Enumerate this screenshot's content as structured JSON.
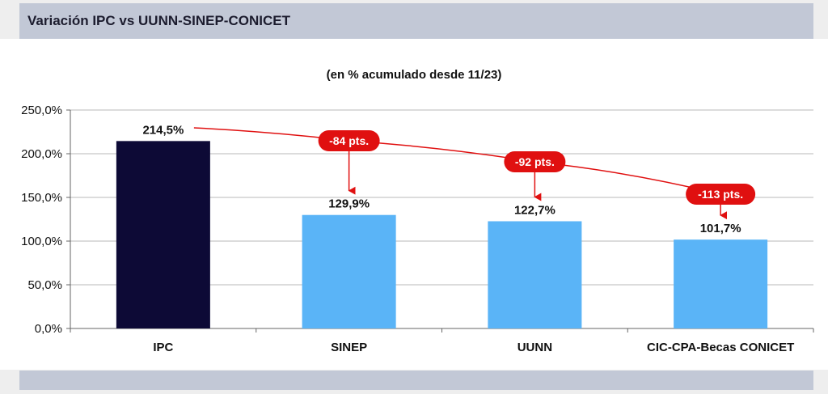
{
  "header": {
    "title": "Variación IPC vs UUNN-SINEP-CONICET"
  },
  "chart_data": {
    "type": "bar",
    "subtitle": "(en % acumulado desde 11/23)",
    "categories": [
      "IPC",
      "SINEP",
      "UUNN",
      "CIC-CPA-Becas CONICET"
    ],
    "values": [
      214.5,
      129.9,
      122.7,
      101.7
    ],
    "value_labels": [
      "214,5%",
      "129,9%",
      "122,7%",
      "101,7%"
    ],
    "ylim": [
      0,
      250
    ],
    "yticks": [
      0,
      50,
      100,
      150,
      200,
      250
    ],
    "ytick_labels": [
      "0,0%",
      "50,0%",
      "100,0%",
      "150,0%",
      "200,0%",
      "250,0%"
    ],
    "grid": true,
    "bar_colors": [
      "#0d0a36",
      "#5ab4f7",
      "#5ab4f7",
      "#5ab4f7"
    ],
    "annotations": [
      {
        "label": "-84 pts.",
        "target_index": 1
      },
      {
        "label": "-92 pts.",
        "target_index": 2
      },
      {
        "label": "-113 pts.",
        "target_index": 3
      }
    ],
    "annotation_color": "#e01010"
  }
}
